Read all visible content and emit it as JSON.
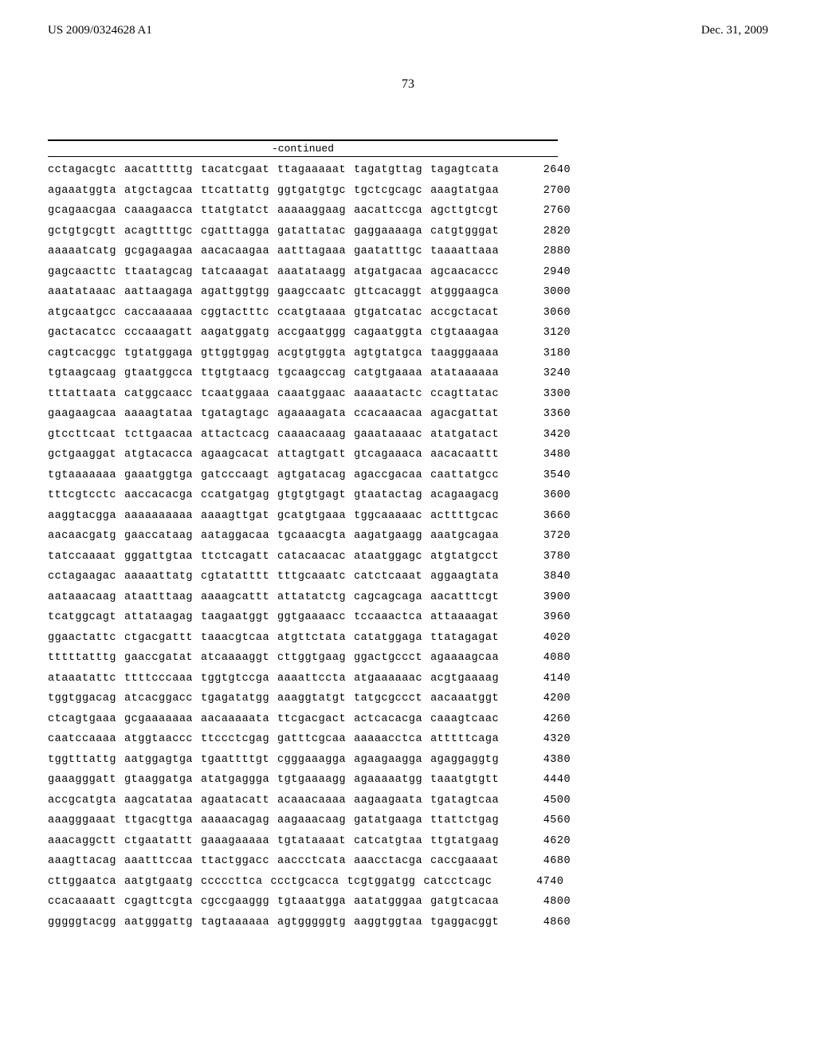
{
  "header": {
    "left": "US 2009/0324628 A1",
    "right": "Dec. 31, 2009"
  },
  "page_number": "73",
  "continued_label": "-continued",
  "sequence_rows": [
    {
      "groups": [
        "cctagacgtc",
        "aacatttttg",
        "tacatcgaat",
        "ttagaaaaat",
        "tagatgttag",
        "tagagtcata"
      ],
      "pos": "2640"
    },
    {
      "groups": [
        "agaaatggta",
        "atgctagcaa",
        "ttcattattg",
        "ggtgatgtgc",
        "tgctcgcagc",
        "aaagtatgaa"
      ],
      "pos": "2700"
    },
    {
      "groups": [
        "gcagaacgaa",
        "caaagaacca",
        "ttatgtatct",
        "aaaaaggaag",
        "aacattccga",
        "agcttgtcgt"
      ],
      "pos": "2760"
    },
    {
      "groups": [
        "gctgtgcgtt",
        "acagttttgc",
        "cgatttagga",
        "gatattatac",
        "gaggaaaaga",
        "catgtgggat"
      ],
      "pos": "2820"
    },
    {
      "groups": [
        "aaaaatcatg",
        "gcgagaagaa",
        "aacacaagaa",
        "aatttagaaa",
        "gaatatttgc",
        "taaaattaaa"
      ],
      "pos": "2880"
    },
    {
      "groups": [
        "gagcaacttc",
        "ttaatagcag",
        "tatcaaagat",
        "aaatataagg",
        "atgatgacaa",
        "agcaacaccc"
      ],
      "pos": "2940"
    },
    {
      "groups": [
        "aaatataaac",
        "aattaagaga",
        "agattggtgg",
        "gaagccaatc",
        "gttcacaggt",
        "atgggaagca"
      ],
      "pos": "3000"
    },
    {
      "groups": [
        "atgcaatgcc",
        "caccaaaaaa",
        "cggtactttc",
        "ccatgtaaaa",
        "gtgatcatac",
        "accgctacat"
      ],
      "pos": "3060"
    },
    {
      "groups": [
        "gactacatcc",
        "cccaaagatt",
        "aagatggatg",
        "accgaatggg",
        "cagaatggta",
        "ctgtaaagaa"
      ],
      "pos": "3120"
    },
    {
      "groups": [
        "cagtcacggc",
        "tgtatggaga",
        "gttggtggag",
        "acgtgtggta",
        "agtgtatgca",
        "taagggaaaa"
      ],
      "pos": "3180"
    },
    {
      "groups": [
        "tgtaagcaag",
        "gtaatggcca",
        "ttgtgtaacg",
        "tgcaagccag",
        "catgtgaaaa",
        "atataaaaaa"
      ],
      "pos": "3240"
    },
    {
      "groups": [
        "tttattaata",
        "catggcaacc",
        "tcaatggaaa",
        "caaatggaac",
        "aaaaatactc",
        "ccagttatac"
      ],
      "pos": "3300"
    },
    {
      "groups": [
        "gaagaagcaa",
        "aaaagtataa",
        "tgatagtagc",
        "agaaaagata",
        "ccacaaacaa",
        "agacgattat"
      ],
      "pos": "3360"
    },
    {
      "groups": [
        "gtccttcaat",
        "tcttgaacaa",
        "attactcacg",
        "caaaacaaag",
        "gaaataaaac",
        "atatgatact"
      ],
      "pos": "3420"
    },
    {
      "groups": [
        "gctgaaggat",
        "atgtacacca",
        "agaagcacat",
        "attagtgatt",
        "gtcagaaaca",
        "aacacaattt"
      ],
      "pos": "3480"
    },
    {
      "groups": [
        "tgtaaaaaaa",
        "gaaatggtga",
        "gatcccaagt",
        "agtgatacag",
        "agaccgacaa",
        "caattatgcc"
      ],
      "pos": "3540"
    },
    {
      "groups": [
        "tttcgtcctc",
        "aaccacacga",
        "ccatgatgag",
        "gtgtgtgagt",
        "gtaatactag",
        "acagaagacg"
      ],
      "pos": "3600"
    },
    {
      "groups": [
        "aaggtacgga",
        "aaaaaaaaaa",
        "aaaagttgat",
        "gcatgtgaaa",
        "tggcaaaaac",
        "acttttgcac"
      ],
      "pos": "3660"
    },
    {
      "groups": [
        "aacaacgatg",
        "gaaccataag",
        "aataggacaa",
        "tgcaaacgta",
        "aagatgaagg",
        "aaatgcagaa"
      ],
      "pos": "3720"
    },
    {
      "groups": [
        "tatccaaaat",
        "gggattgtaa",
        "ttctcagatt",
        "catacaacac",
        "ataatggagc",
        "atgtatgcct"
      ],
      "pos": "3780"
    },
    {
      "groups": [
        "cctagaagac",
        "aaaaattatg",
        "cgtatatttt",
        "tttgcaaatc",
        "catctcaaat",
        "aggaagtata"
      ],
      "pos": "3840"
    },
    {
      "groups": [
        "aataaacaag",
        "ataatttaag",
        "aaaagcattt",
        "attatatctg",
        "cagcagcaga",
        "aacatttcgt"
      ],
      "pos": "3900"
    },
    {
      "groups": [
        "tcatggcagt",
        "attataagag",
        "taagaatggt",
        "ggtgaaaacc",
        "tccaaactca",
        "attaaaagat"
      ],
      "pos": "3960"
    },
    {
      "groups": [
        "ggaactattc",
        "ctgacgattt",
        "taaacgtcaa",
        "atgttctata",
        "catatggaga",
        "ttatagagat"
      ],
      "pos": "4020"
    },
    {
      "groups": [
        "tttttatttg",
        "gaaccgatat",
        "atcaaaaggt",
        "cttggtgaag",
        "ggactgccct",
        "agaaaagcaa"
      ],
      "pos": "4080"
    },
    {
      "groups": [
        "ataaatattc",
        "ttttcccaaa",
        "tggtgtccga",
        "aaaattccta",
        "atgaaaaaac",
        "acgtgaaaag"
      ],
      "pos": "4140"
    },
    {
      "groups": [
        "tggtggacag",
        "atcacggacc",
        "tgagatatgg",
        "aaaggtatgt",
        "tatgcgccct",
        "aacaaatggt"
      ],
      "pos": "4200"
    },
    {
      "groups": [
        "ctcagtgaaa",
        "gcgaaaaaaa",
        "aacaaaaata",
        "ttcgacgact",
        "actcacacga",
        "caaagtcaac"
      ],
      "pos": "4260"
    },
    {
      "groups": [
        "caatccaaaa",
        "atggtaaccc",
        "ttccctcgag",
        "gatttcgcaa",
        "aaaaacctca",
        "atttttcaga"
      ],
      "pos": "4320"
    },
    {
      "groups": [
        "tggtttattg",
        "aatggagtga",
        "tgaattttgt",
        "cgggaaagga",
        "agaagaagga",
        "agaggaggtg"
      ],
      "pos": "4380"
    },
    {
      "groups": [
        "gaaagggatt",
        "gtaaggatga",
        "atatgaggga",
        "tgtgaaaagg",
        "agaaaaatgg",
        "taaatgtgtt"
      ],
      "pos": "4440"
    },
    {
      "groups": [
        "accgcatgta",
        "aagcatataa",
        "agaatacatt",
        "acaaacaaaa",
        "aagaagaata",
        "tgatagtcaa"
      ],
      "pos": "4500"
    },
    {
      "groups": [
        "aaagggaaat",
        "ttgacgttga",
        "aaaaacagag",
        "aagaaacaag",
        "gatatgaaga",
        "ttattctgag"
      ],
      "pos": "4560"
    },
    {
      "groups": [
        "aaacaggctt",
        "ctgaatattt",
        "gaaagaaaaa",
        "tgtataaaat",
        "catcatgtaa",
        "ttgtatgaag"
      ],
      "pos": "4620"
    },
    {
      "groups": [
        "aaagttacag",
        "aaatttccaa",
        "ttactggacc",
        "aaccctcata",
        "aaacctacga",
        "caccgaaaat"
      ],
      "pos": "4680"
    },
    {
      "groups": [
        "cttggaatca",
        "aatgtgaatg",
        "cccccttca",
        "ccctgcacca",
        "tcgtggatgg",
        "catcctcagc"
      ],
      "pos": "4740"
    },
    {
      "groups": [
        "ccacaaaatt",
        "cgagttcgta",
        "cgccgaaggg",
        "tgtaaatgga",
        "aatatgggaa",
        "gatgtcacaa"
      ],
      "pos": "4800"
    },
    {
      "groups": [
        "gggggtacgg",
        "aatgggattg",
        "tagtaaaaaa",
        "agtgggggtg",
        "aaggtggtaa",
        "tgaggacggt"
      ],
      "pos": "4860"
    }
  ]
}
